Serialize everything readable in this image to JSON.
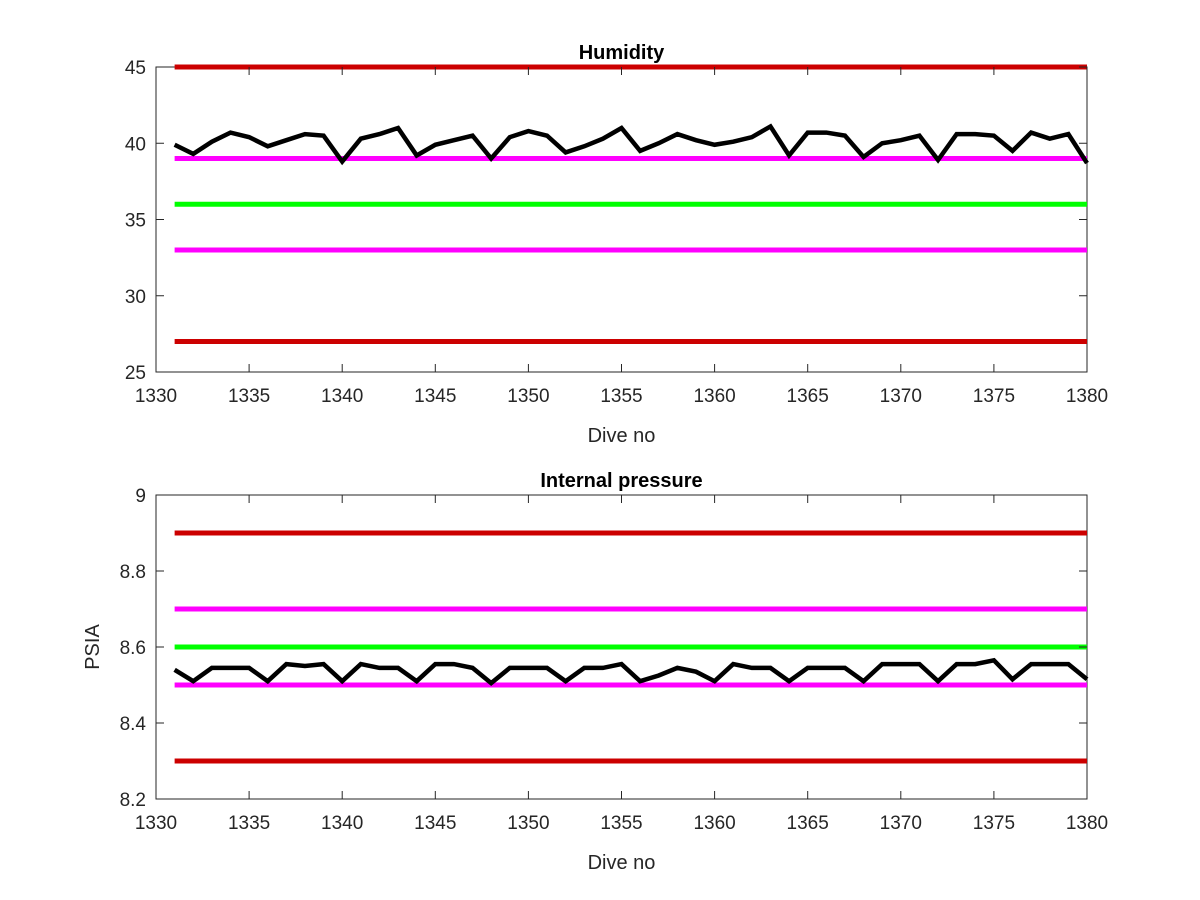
{
  "chart_data": [
    {
      "type": "line",
      "title": "Humidity",
      "xlabel": "Dive no",
      "ylabel": "",
      "xlim": [
        1330,
        1380
      ],
      "ylim": [
        25,
        45
      ],
      "xticks": [
        "1330",
        "1335",
        "1340",
        "1345",
        "1350",
        "1355",
        "1360",
        "1365",
        "1370",
        "1375",
        "1380"
      ],
      "yticks": [
        "25",
        "30",
        "35",
        "40",
        "45"
      ],
      "grid": false,
      "legend": null,
      "x": [
        1331,
        1332,
        1333,
        1334,
        1335,
        1336,
        1337,
        1338,
        1339,
        1340,
        1341,
        1342,
        1343,
        1344,
        1345,
        1346,
        1347,
        1348,
        1349,
        1350,
        1351,
        1352,
        1353,
        1354,
        1355,
        1356,
        1357,
        1358,
        1359,
        1360,
        1361,
        1362,
        1363,
        1364,
        1365,
        1366,
        1367,
        1368,
        1369,
        1370,
        1371,
        1372,
        1373,
        1374,
        1375,
        1376,
        1377,
        1378,
        1379,
        1380
      ],
      "series": [
        {
          "role": "measurement",
          "color": "#000000",
          "values": [
            39.9,
            39.3,
            40.1,
            40.7,
            40.4,
            39.8,
            40.2,
            40.6,
            40.5,
            38.8,
            40.3,
            40.6,
            41.0,
            39.2,
            39.9,
            40.2,
            40.5,
            39.0,
            40.4,
            40.8,
            40.5,
            39.4,
            39.8,
            40.3,
            41.0,
            39.5,
            40.0,
            40.6,
            40.2,
            39.9,
            40.1,
            40.4,
            41.1,
            39.2,
            40.7,
            40.7,
            40.5,
            39.1,
            40.0,
            40.2,
            40.5,
            38.9,
            40.6,
            40.6,
            40.5,
            39.5,
            40.7,
            40.3,
            40.6,
            38.7
          ]
        }
      ],
      "reference_lines": [
        {
          "value": 45,
          "color": "#cc0000"
        },
        {
          "value": 39,
          "color": "#ff00ff"
        },
        {
          "value": 36,
          "color": "#00ff00"
        },
        {
          "value": 33,
          "color": "#ff00ff"
        },
        {
          "value": 27,
          "color": "#cc0000"
        }
      ]
    },
    {
      "type": "line",
      "title": "Internal pressure",
      "xlabel": "Dive no",
      "ylabel": "PSIA",
      "xlim": [
        1330,
        1380
      ],
      "ylim": [
        8.2,
        9.0
      ],
      "xticks": [
        "1330",
        "1335",
        "1340",
        "1345",
        "1350",
        "1355",
        "1360",
        "1365",
        "1370",
        "1375",
        "1380"
      ],
      "yticks": [
        "8.2",
        "8.4",
        "8.6",
        "8.8",
        "9"
      ],
      "grid": false,
      "legend": null,
      "x": [
        1331,
        1332,
        1333,
        1334,
        1335,
        1336,
        1337,
        1338,
        1339,
        1340,
        1341,
        1342,
        1343,
        1344,
        1345,
        1346,
        1347,
        1348,
        1349,
        1350,
        1351,
        1352,
        1353,
        1354,
        1355,
        1356,
        1357,
        1358,
        1359,
        1360,
        1361,
        1362,
        1363,
        1364,
        1365,
        1366,
        1367,
        1368,
        1369,
        1370,
        1371,
        1372,
        1373,
        1374,
        1375,
        1376,
        1377,
        1378,
        1379,
        1380
      ],
      "series": [
        {
          "role": "measurement",
          "color": "#000000",
          "values": [
            8.54,
            8.51,
            8.545,
            8.545,
            8.545,
            8.51,
            8.555,
            8.55,
            8.555,
            8.51,
            8.555,
            8.545,
            8.545,
            8.51,
            8.555,
            8.555,
            8.545,
            8.505,
            8.545,
            8.545,
            8.545,
            8.51,
            8.545,
            8.545,
            8.555,
            8.51,
            8.525,
            8.545,
            8.535,
            8.51,
            8.555,
            8.545,
            8.545,
            8.51,
            8.545,
            8.545,
            8.545,
            8.51,
            8.555,
            8.555,
            8.555,
            8.51,
            8.555,
            8.555,
            8.565,
            8.515,
            8.555,
            8.555,
            8.555,
            8.515
          ]
        }
      ],
      "reference_lines": [
        {
          "value": 8.9,
          "color": "#cc0000"
        },
        {
          "value": 8.7,
          "color": "#ff00ff"
        },
        {
          "value": 8.6,
          "color": "#00ff00"
        },
        {
          "value": 8.5,
          "color": "#ff00ff"
        },
        {
          "value": 8.3,
          "color": "#cc0000"
        }
      ]
    }
  ]
}
